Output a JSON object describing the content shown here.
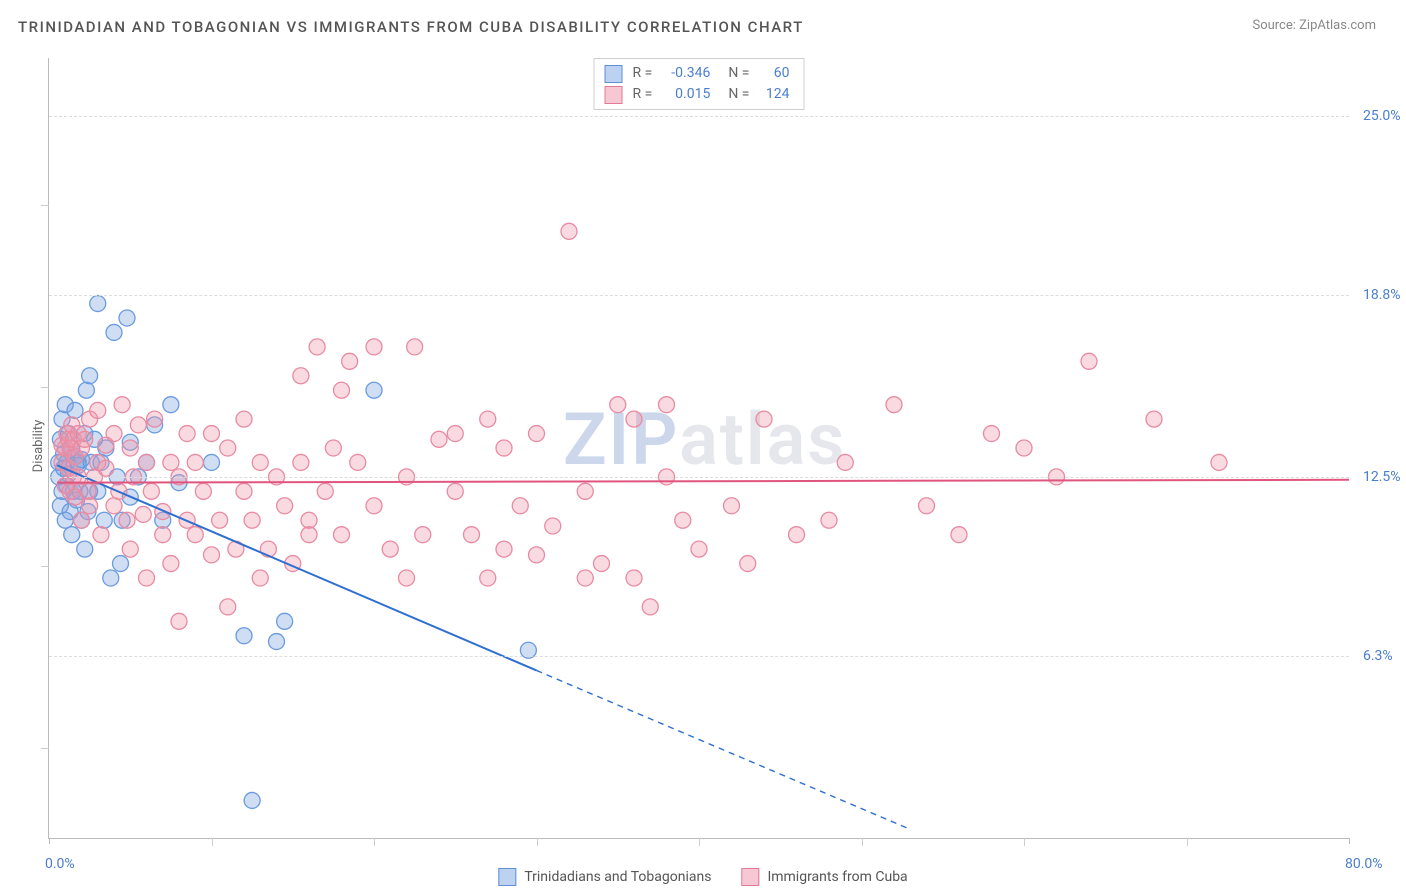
{
  "title": "TRINIDADIAN AND TOBAGONIAN VS IMMIGRANTS FROM CUBA DISABILITY CORRELATION CHART",
  "source_label": "Source: ",
  "source_value": "ZipAtlas.com",
  "watermark": {
    "part1": "ZIP",
    "part2": "atlas"
  },
  "chart": {
    "type": "scatter",
    "background_color": "#ffffff",
    "grid_color": "#dddddd",
    "border_color": "#bbbbbb",
    "ylabel": "Disability",
    "ylabel_fontsize": 13,
    "xlim": [
      0.0,
      80.0
    ],
    "ylim": [
      0.0,
      27.0
    ],
    "x_tick_labels": [
      {
        "v": 0.0,
        "label": "0.0%"
      },
      {
        "v": 80.0,
        "label": "80.0%"
      }
    ],
    "x_minor_ticks": [
      10,
      20,
      30,
      40,
      50,
      60,
      70
    ],
    "y_gridlines": [
      {
        "v": 6.3,
        "label": "6.3%"
      },
      {
        "v": 12.5,
        "label": "12.5%"
      },
      {
        "v": 18.8,
        "label": "18.8%"
      },
      {
        "v": 25.0,
        "label": "25.0%"
      }
    ],
    "y_minor_ticks": [
      3.1,
      9.4,
      15.6,
      21.9
    ],
    "tick_label_color": "#4a7ecc",
    "label_color": "#666666",
    "marker_radius": 8,
    "marker_stroke_width": 1.3,
    "regression_line_width": 2
  },
  "series": [
    {
      "name": "Trinidadians and Tobagonians",
      "fill": "rgba(120,160,220,0.35)",
      "stroke": "#6a9be0",
      "swatch_fill": "#bcd2f0",
      "swatch_stroke": "#5f8fd6",
      "line_color": "#2f6fd0",
      "R": "-0.346",
      "N": "60",
      "regression": {
        "x1": 0.5,
        "y1": 12.9,
        "x2": 30.0,
        "y2": 5.8,
        "dashed_x2": 53.0,
        "dashed_y2": 0.3
      },
      "points": [
        [
          0.6,
          12.5
        ],
        [
          0.6,
          13.0
        ],
        [
          0.7,
          13.8
        ],
        [
          0.7,
          11.5
        ],
        [
          0.8,
          14.5
        ],
        [
          0.8,
          12.0
        ],
        [
          0.9,
          12.8
        ],
        [
          0.9,
          13.3
        ],
        [
          1.0,
          15.0
        ],
        [
          1.0,
          11.0
        ],
        [
          1.1,
          12.2
        ],
        [
          1.1,
          13.0
        ],
        [
          1.2,
          14.0
        ],
        [
          1.2,
          12.6
        ],
        [
          1.3,
          11.3
        ],
        [
          1.4,
          13.5
        ],
        [
          1.4,
          10.5
        ],
        [
          1.5,
          12.0
        ],
        [
          1.6,
          13.2
        ],
        [
          1.6,
          14.8
        ],
        [
          1.7,
          11.7
        ],
        [
          1.8,
          12.9
        ],
        [
          1.8,
          13.0
        ],
        [
          1.9,
          12.0
        ],
        [
          2.0,
          13.1
        ],
        [
          2.0,
          11.0
        ],
        [
          2.2,
          10.0
        ],
        [
          2.2,
          14.0
        ],
        [
          2.3,
          15.5
        ],
        [
          2.4,
          11.3
        ],
        [
          2.5,
          12.0
        ],
        [
          2.5,
          16.0
        ],
        [
          2.6,
          13.0
        ],
        [
          2.8,
          13.8
        ],
        [
          3.0,
          18.5
        ],
        [
          3.0,
          12.0
        ],
        [
          3.2,
          13.0
        ],
        [
          3.4,
          11.0
        ],
        [
          3.5,
          13.5
        ],
        [
          3.8,
          9.0
        ],
        [
          4.0,
          17.5
        ],
        [
          4.2,
          12.5
        ],
        [
          4.4,
          9.5
        ],
        [
          4.5,
          11.0
        ],
        [
          4.8,
          18.0
        ],
        [
          5.0,
          13.7
        ],
        [
          5.0,
          11.8
        ],
        [
          5.5,
          12.5
        ],
        [
          6.0,
          13.0
        ],
        [
          6.5,
          14.3
        ],
        [
          7.0,
          11.0
        ],
        [
          7.5,
          15.0
        ],
        [
          8.0,
          12.3
        ],
        [
          10.0,
          13.0
        ],
        [
          12.0,
          7.0
        ],
        [
          12.5,
          1.3
        ],
        [
          14.0,
          6.8
        ],
        [
          14.5,
          7.5
        ],
        [
          20.0,
          15.5
        ],
        [
          29.5,
          6.5
        ]
      ]
    },
    {
      "name": "Immigrants from Cuba",
      "fill": "rgba(240,150,170,0.35)",
      "stroke": "#e88ba2",
      "swatch_fill": "#f7c8d3",
      "swatch_stroke": "#e07a95",
      "line_color": "#e0557d",
      "R": "0.015",
      "N": "124",
      "regression": {
        "x1": 0.5,
        "y1": 12.3,
        "x2": 80.0,
        "y2": 12.4
      },
      "points": [
        [
          0.8,
          13.0
        ],
        [
          0.8,
          13.6
        ],
        [
          1.0,
          12.2
        ],
        [
          1.0,
          13.5
        ],
        [
          1.1,
          14.0
        ],
        [
          1.2,
          12.8
        ],
        [
          1.2,
          13.8
        ],
        [
          1.3,
          12.0
        ],
        [
          1.3,
          13.5
        ],
        [
          1.4,
          14.3
        ],
        [
          1.5,
          12.5
        ],
        [
          1.5,
          13.8
        ],
        [
          1.6,
          11.8
        ],
        [
          1.6,
          13.2
        ],
        [
          1.8,
          14.0
        ],
        [
          1.8,
          12.5
        ],
        [
          2.0,
          11.0
        ],
        [
          2.0,
          13.5
        ],
        [
          2.2,
          13.8
        ],
        [
          2.4,
          12.0
        ],
        [
          2.5,
          14.5
        ],
        [
          2.5,
          11.5
        ],
        [
          2.8,
          12.5
        ],
        [
          3.0,
          13.0
        ],
        [
          3.0,
          14.8
        ],
        [
          3.2,
          10.5
        ],
        [
          3.5,
          12.8
        ],
        [
          3.5,
          13.6
        ],
        [
          4.0,
          11.5
        ],
        [
          4.0,
          14.0
        ],
        [
          4.3,
          12.0
        ],
        [
          4.5,
          15.0
        ],
        [
          4.8,
          11.0
        ],
        [
          5.0,
          13.5
        ],
        [
          5.0,
          10.0
        ],
        [
          5.2,
          12.5
        ],
        [
          5.5,
          14.3
        ],
        [
          5.8,
          11.2
        ],
        [
          6.0,
          9.0
        ],
        [
          6.0,
          13.0
        ],
        [
          6.3,
          12.0
        ],
        [
          6.5,
          14.5
        ],
        [
          7.0,
          11.3
        ],
        [
          7.0,
          10.5
        ],
        [
          7.5,
          13.0
        ],
        [
          7.5,
          9.5
        ],
        [
          8.0,
          12.5
        ],
        [
          8.0,
          7.5
        ],
        [
          8.5,
          14.0
        ],
        [
          8.5,
          11.0
        ],
        [
          9.0,
          10.5
        ],
        [
          9.0,
          13.0
        ],
        [
          9.5,
          12.0
        ],
        [
          10.0,
          14.0
        ],
        [
          10.0,
          9.8
        ],
        [
          10.5,
          11.0
        ],
        [
          11.0,
          8.0
        ],
        [
          11.0,
          13.5
        ],
        [
          11.5,
          10.0
        ],
        [
          12.0,
          12.0
        ],
        [
          12.0,
          14.5
        ],
        [
          12.5,
          11.0
        ],
        [
          13.0,
          9.0
        ],
        [
          13.0,
          13.0
        ],
        [
          13.5,
          10.0
        ],
        [
          14.0,
          12.5
        ],
        [
          14.5,
          11.5
        ],
        [
          15.0,
          9.5
        ],
        [
          15.5,
          16.0
        ],
        [
          15.5,
          13.0
        ],
        [
          16.0,
          10.5
        ],
        [
          16.0,
          11.0
        ],
        [
          16.5,
          17.0
        ],
        [
          17.0,
          12.0
        ],
        [
          17.5,
          13.5
        ],
        [
          18.0,
          10.5
        ],
        [
          18.0,
          15.5
        ],
        [
          18.5,
          16.5
        ],
        [
          19.0,
          13.0
        ],
        [
          20.0,
          11.5
        ],
        [
          20.0,
          17.0
        ],
        [
          21.0,
          10.0
        ],
        [
          22.0,
          12.5
        ],
        [
          22.0,
          9.0
        ],
        [
          22.5,
          17.0
        ],
        [
          23.0,
          10.5
        ],
        [
          24.0,
          13.8
        ],
        [
          25.0,
          12.0
        ],
        [
          25.0,
          14.0
        ],
        [
          26.0,
          10.5
        ],
        [
          27.0,
          9.0
        ],
        [
          27.0,
          14.5
        ],
        [
          28.0,
          13.5
        ],
        [
          28.0,
          10.0
        ],
        [
          29.0,
          11.5
        ],
        [
          30.0,
          9.8
        ],
        [
          30.0,
          14.0
        ],
        [
          31.0,
          10.8
        ],
        [
          32.0,
          21.0
        ],
        [
          33.0,
          9.0
        ],
        [
          33.0,
          12.0
        ],
        [
          34.0,
          9.5
        ],
        [
          35.0,
          15.0
        ],
        [
          36.0,
          9.0
        ],
        [
          36.0,
          14.5
        ],
        [
          37.0,
          8.0
        ],
        [
          38.0,
          15.0
        ],
        [
          38.0,
          12.5
        ],
        [
          39.0,
          11.0
        ],
        [
          40.0,
          10.0
        ],
        [
          42.0,
          11.5
        ],
        [
          43.0,
          9.5
        ],
        [
          44.0,
          14.5
        ],
        [
          46.0,
          10.5
        ],
        [
          48.0,
          11.0
        ],
        [
          49.0,
          13.0
        ],
        [
          52.0,
          15.0
        ],
        [
          54.0,
          11.5
        ],
        [
          56.0,
          10.5
        ],
        [
          58.0,
          14.0
        ],
        [
          60.0,
          13.5
        ],
        [
          62.0,
          12.5
        ],
        [
          64.0,
          16.5
        ],
        [
          68.0,
          14.5
        ],
        [
          72.0,
          13.0
        ]
      ]
    }
  ],
  "stats_box": {
    "R_label": "R =",
    "N_label": "N ="
  }
}
